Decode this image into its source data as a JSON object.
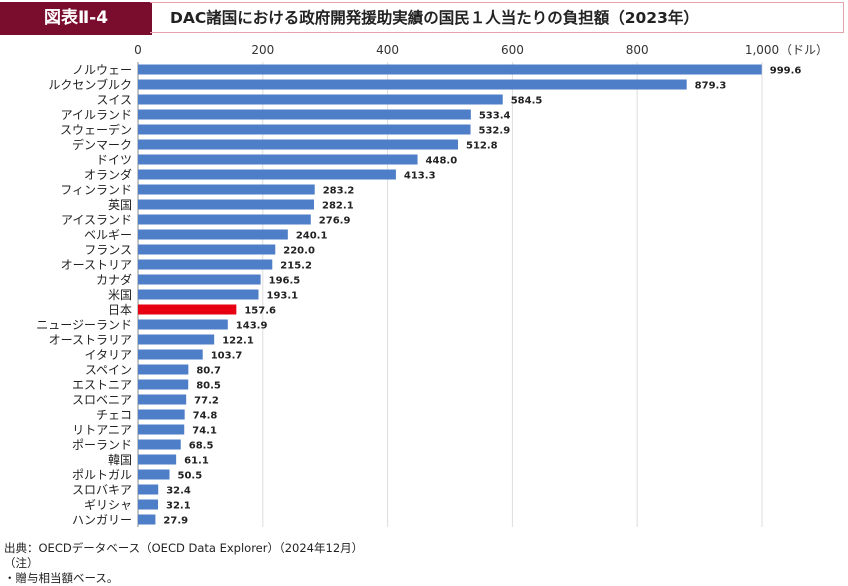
{
  "header": {
    "figure_label": "図表Ⅱ-4",
    "title": "DAC諸国における政府開発援助実績の国民１人当たりの負担額（2023年）"
  },
  "chart_data": {
    "type": "bar",
    "orientation": "horizontal",
    "title": "DAC諸国における政府開発援助実績の国民１人当たりの負担額（2023年）",
    "unit": "（ドル）",
    "xlim": [
      0,
      1000
    ],
    "ticks": [
      0,
      200,
      400,
      600,
      800,
      1000
    ],
    "tick_labels": [
      "0",
      "200",
      "400",
      "600",
      "800",
      "1,000"
    ],
    "grid": true,
    "categories": [
      "ノルウェー",
      "ルクセンブルク",
      "スイス",
      "アイルランド",
      "スウェーデン",
      "デンマーク",
      "ドイツ",
      "オランダ",
      "フィンランド",
      "英国",
      "アイスランド",
      "ベルギー",
      "フランス",
      "オーストリア",
      "カナダ",
      "米国",
      "日本",
      "ニュージーランド",
      "オーストラリア",
      "イタリア",
      "スペイン",
      "エストニア",
      "スロベニア",
      "チェコ",
      "リトアニア",
      "ポーランド",
      "韓国",
      "ポルトガル",
      "スロバキア",
      "ギリシャ",
      "ハンガリー"
    ],
    "values": [
      999.6,
      879.3,
      584.5,
      533.4,
      532.9,
      512.8,
      448.0,
      413.3,
      283.2,
      282.1,
      276.9,
      240.1,
      220.0,
      215.2,
      196.5,
      193.1,
      157.6,
      143.9,
      122.1,
      103.7,
      80.7,
      80.5,
      77.2,
      74.8,
      74.1,
      68.5,
      61.1,
      50.5,
      32.4,
      32.1,
      27.9
    ],
    "bar_color": "#4f7ec8",
    "highlight": {
      "category": "日本",
      "color": "#e60012"
    }
  },
  "footer": {
    "source": "出典：OECDデータベース（OECD Data Explorer）（2024年12月）",
    "note_label": "（注）",
    "note": "・贈与相当額ベース。"
  }
}
